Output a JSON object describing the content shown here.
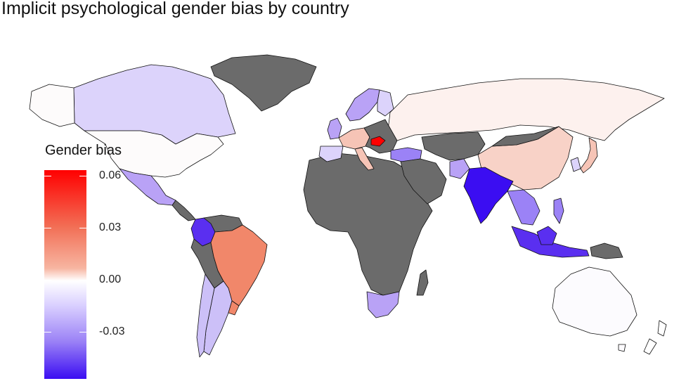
{
  "title": "Implicit psychological gender bias by country",
  "legend": {
    "title": "Gender bias",
    "ticks": [
      "0.06",
      "0.03",
      "0.00",
      "-0.03"
    ],
    "colors": {
      "high": "#ff0000",
      "mid": "#ffffff",
      "low": "#3b0df2",
      "no_data": "#6b6b6b"
    }
  },
  "regions": [
    {
      "name": "Greenland",
      "color": "#6b6b6b"
    },
    {
      "name": "Canada",
      "color": "#dcd3fb"
    },
    {
      "name": "Alaska",
      "color": "#fdfbfb"
    },
    {
      "name": "USA",
      "color": "#fdfbfb"
    },
    {
      "name": "Mexico",
      "color": "#b9a2f6"
    },
    {
      "name": "Central America",
      "color": "#6b6b6b"
    },
    {
      "name": "Colombia",
      "color": "#5a2ff0"
    },
    {
      "name": "Venezuela",
      "color": "#6b6b6b"
    },
    {
      "name": "Brazil",
      "color": "#f1876a"
    },
    {
      "name": "Peru/Bolivia",
      "color": "#6b6b6b"
    },
    {
      "name": "Chile",
      "color": "#ccc0f8"
    },
    {
      "name": "Argentina",
      "color": "#ccc0f8"
    },
    {
      "name": "Uruguay",
      "color": "#f1876a"
    },
    {
      "name": "Africa",
      "color": "#6b6b6b"
    },
    {
      "name": "South Africa",
      "color": "#b9a2f6"
    },
    {
      "name": "Madagascar",
      "color": "#6b6b6b"
    },
    {
      "name": "Russia",
      "color": "#fdf1ee"
    },
    {
      "name": "Scandinavia",
      "color": "#b9a2f6"
    },
    {
      "name": "Finland",
      "color": "#dcd3fb"
    },
    {
      "name": "UK",
      "color": "#b9a2f6"
    },
    {
      "name": "Western Europe",
      "color": "#f6c4b6"
    },
    {
      "name": "Spain",
      "color": "#dcd3fb"
    },
    {
      "name": "Italy",
      "color": "#f6c4b6"
    },
    {
      "name": "Hungary",
      "color": "#ff0000"
    },
    {
      "name": "Turkey",
      "color": "#9b82f6"
    },
    {
      "name": "Middle East",
      "color": "#6b6b6b"
    },
    {
      "name": "Central Asia",
      "color": "#6b6b6b"
    },
    {
      "name": "China",
      "color": "#f8d2c7"
    },
    {
      "name": "Mongolia",
      "color": "#6b6b6b"
    },
    {
      "name": "India",
      "color": "#3b0df2"
    },
    {
      "name": "Afghanistan",
      "color": "#b9a2f6"
    },
    {
      "name": "Southeast Asia",
      "color": "#9b82f6"
    },
    {
      "name": "Japan",
      "color": "#f6c4b6"
    },
    {
      "name": "Korea",
      "color": "#dcd3fb"
    },
    {
      "name": "Philippines",
      "color": "#9b82f6"
    },
    {
      "name": "Indonesia",
      "color": "#5a2ff0"
    },
    {
      "name": "Papua",
      "color": "#6b6b6b"
    },
    {
      "name": "Australia",
      "color": "#fcfbfe"
    }
  ]
}
